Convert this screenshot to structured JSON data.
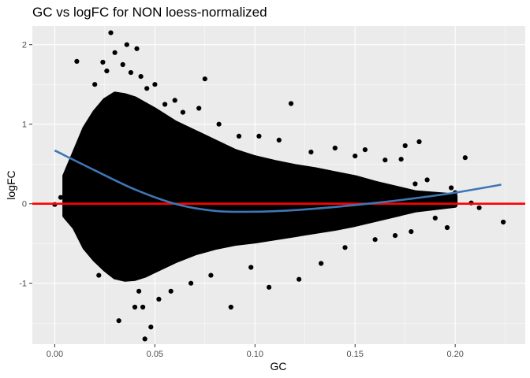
{
  "chart_data": {
    "type": "scatter",
    "title": "GC vs logFC for NON loess-normalized",
    "xlabel": "GC",
    "ylabel": "logFC",
    "xlim": [
      -0.0112,
      0.235
    ],
    "ylim": [
      -1.765,
      2.235
    ],
    "x_ticks": [
      0.0,
      0.05,
      0.1,
      0.15,
      0.2
    ],
    "x_tick_labels": [
      "0.00",
      "0.05",
      "0.10",
      "0.15",
      "0.20"
    ],
    "y_ticks": [
      -1,
      0,
      1,
      2
    ],
    "y_tick_labels": [
      "-1",
      "0",
      "1",
      "2"
    ],
    "grid": true,
    "panel_background": "#ebebeb",
    "point_color": "#000000",
    "reference_line": {
      "y": 0,
      "color": "#ff0000"
    },
    "smooth_line": {
      "color": "#3f76b5",
      "x": [
        0.0,
        0.02,
        0.04,
        0.06,
        0.08,
        0.1,
        0.12,
        0.14,
        0.16,
        0.18,
        0.2,
        0.223
      ],
      "y": [
        0.67,
        0.42,
        0.18,
        0.0,
        -0.09,
        -0.1,
        -0.08,
        -0.04,
        0.01,
        0.07,
        0.14,
        0.24
      ]
    },
    "density_profile": {
      "x": [
        0.005,
        0.01,
        0.015,
        0.02,
        0.025,
        0.03,
        0.035,
        0.04,
        0.045,
        0.05,
        0.06,
        0.07,
        0.08,
        0.09,
        0.1,
        0.11,
        0.12,
        0.13,
        0.14,
        0.15,
        0.16,
        0.17,
        0.18,
        0.19,
        0.2
      ],
      "upper": [
        0.35,
        0.65,
        0.95,
        1.15,
        1.3,
        1.38,
        1.36,
        1.32,
        1.25,
        1.18,
        1.02,
        0.9,
        0.78,
        0.66,
        0.58,
        0.52,
        0.47,
        0.43,
        0.38,
        0.33,
        0.26,
        0.2,
        0.14,
        0.12,
        0.1
      ],
      "lower": [
        -0.15,
        -0.3,
        -0.55,
        -0.7,
        -0.82,
        -0.92,
        -0.95,
        -0.94,
        -0.9,
        -0.84,
        -0.72,
        -0.62,
        -0.55,
        -0.5,
        -0.47,
        -0.43,
        -0.39,
        -0.35,
        -0.31,
        -0.26,
        -0.2,
        -0.14,
        -0.08,
        -0.05,
        -0.02
      ]
    },
    "points": [
      [
        0.0,
        -0.01
      ],
      [
        0.003,
        0.08
      ],
      [
        0.006,
        -0.18
      ],
      [
        0.008,
        0.26
      ],
      [
        0.011,
        1.79
      ],
      [
        0.013,
        0.7
      ],
      [
        0.015,
        0.55
      ],
      [
        0.018,
        -0.6
      ],
      [
        0.02,
        1.5
      ],
      [
        0.022,
        -0.9
      ],
      [
        0.024,
        1.78
      ],
      [
        0.026,
        1.67
      ],
      [
        0.028,
        2.15
      ],
      [
        0.03,
        1.9
      ],
      [
        0.032,
        -1.47
      ],
      [
        0.034,
        1.75
      ],
      [
        0.036,
        2.0
      ],
      [
        0.038,
        1.65
      ],
      [
        0.04,
        -1.3
      ],
      [
        0.041,
        1.95
      ],
      [
        0.042,
        -1.1
      ],
      [
        0.043,
        1.6
      ],
      [
        0.044,
        -1.3
      ],
      [
        0.045,
        -1.7
      ],
      [
        0.046,
        1.45
      ],
      [
        0.048,
        -1.55
      ],
      [
        0.05,
        1.5
      ],
      [
        0.052,
        -1.2
      ],
      [
        0.055,
        1.25
      ],
      [
        0.058,
        -1.1
      ],
      [
        0.06,
        1.3
      ],
      [
        0.064,
        1.15
      ],
      [
        0.068,
        -1.0
      ],
      [
        0.072,
        1.2
      ],
      [
        0.075,
        1.57
      ],
      [
        0.078,
        -0.9
      ],
      [
        0.082,
        1.0
      ],
      [
        0.088,
        -1.3
      ],
      [
        0.092,
        0.85
      ],
      [
        0.098,
        -0.8
      ],
      [
        0.102,
        0.85
      ],
      [
        0.107,
        -1.05
      ],
      [
        0.112,
        0.8
      ],
      [
        0.118,
        1.26
      ],
      [
        0.122,
        -0.95
      ],
      [
        0.128,
        0.65
      ],
      [
        0.133,
        -0.75
      ],
      [
        0.14,
        0.7
      ],
      [
        0.145,
        -0.55
      ],
      [
        0.15,
        0.6
      ],
      [
        0.155,
        0.68
      ],
      [
        0.16,
        -0.45
      ],
      [
        0.165,
        0.55
      ],
      [
        0.17,
        -0.4
      ],
      [
        0.173,
        0.56
      ],
      [
        0.175,
        0.73
      ],
      [
        0.178,
        -0.35
      ],
      [
        0.18,
        0.25
      ],
      [
        0.182,
        0.78
      ],
      [
        0.186,
        0.3
      ],
      [
        0.19,
        -0.18
      ],
      [
        0.193,
        0.05
      ],
      [
        0.196,
        -0.3
      ],
      [
        0.198,
        0.2
      ],
      [
        0.2,
        0.14
      ],
      [
        0.205,
        0.58
      ],
      [
        0.208,
        0.01
      ],
      [
        0.212,
        -0.05
      ],
      [
        0.224,
        -0.23
      ]
    ]
  }
}
